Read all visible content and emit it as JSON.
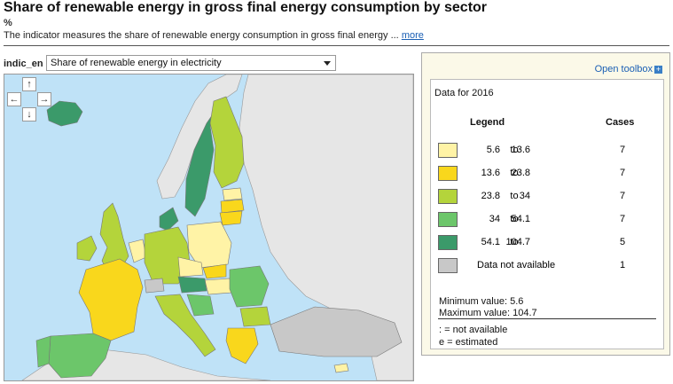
{
  "header": {
    "title": "Share of renewable energy in gross final energy consumption by sector",
    "unit": "%",
    "description": "The indicator measures the share of renewable energy consumption in gross final energy ...",
    "more_link": "more"
  },
  "controls": {
    "label": "indic_en",
    "selected": "Share of renewable energy in electricity"
  },
  "map_nav": {
    "up": "↑",
    "left": "←",
    "right": "→",
    "down": "↓"
  },
  "legend_panel": {
    "toolbox_label": "Open toolbox",
    "toolbox_icon": "+",
    "data_for": "Data for 2016",
    "legend_heading": "Legend",
    "cases_heading": "Cases",
    "to_word": "to",
    "classes": [
      {
        "from": "5.6",
        "to": "13.6",
        "cases": "7",
        "color": "#fff3a6"
      },
      {
        "from": "13.6",
        "to": "23.8",
        "cases": "7",
        "color": "#f9d71c"
      },
      {
        "from": "23.8",
        "to": "34",
        "cases": "7",
        "color": "#b4d43b"
      },
      {
        "from": "34",
        "to": "54.1",
        "cases": "7",
        "color": "#6cc66a"
      },
      {
        "from": "54.1",
        "to": "104.7",
        "cases": "5",
        "color": "#3b9a6a"
      }
    ],
    "not_available": {
      "label": "Data not available",
      "cases": "1",
      "color": "#c8c8c8"
    },
    "min_value": "Minimum value: 5.6",
    "max_value": "Maximum value: 104.7",
    "notes": [
      ": = not available",
      "e = estimated"
    ]
  },
  "colors": {
    "sea": "#bfe2f7",
    "non_eu": "#e6e6e6",
    "border": "#888888"
  }
}
